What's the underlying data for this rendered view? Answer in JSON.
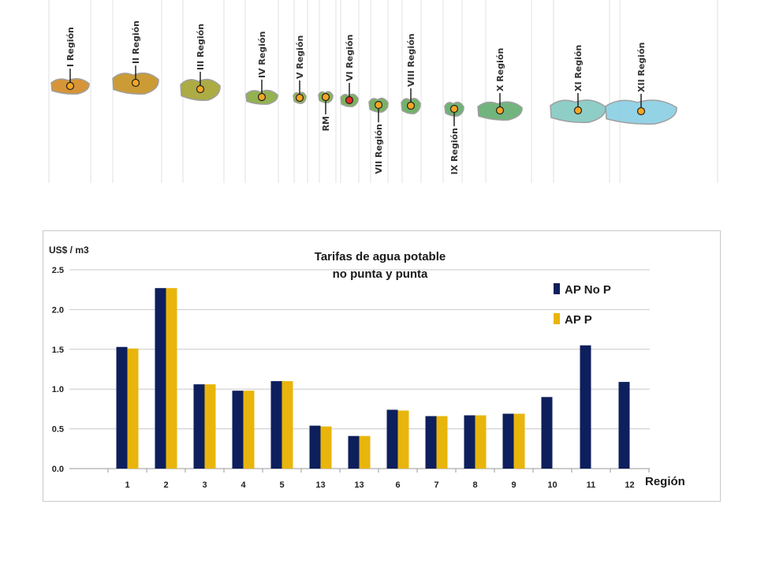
{
  "map": {
    "regions": [
      {
        "label": "I Región",
        "fill": "#d4902e",
        "dot": "#f5a623"
      },
      {
        "label": "II Región",
        "fill": "#c9962c",
        "dot": "#f5a623"
      },
      {
        "label": "III Región",
        "fill": "#a8a73a",
        "dot": "#f5a623"
      },
      {
        "label": "IV Región",
        "fill": "#8fae48",
        "dot": "#f5a623"
      },
      {
        "label": "V Región",
        "fill": "#88b04e",
        "dot": "#f5a623"
      },
      {
        "label": "RM",
        "fill": "#80b050",
        "dot": "#f5a623"
      },
      {
        "label": "VI Región",
        "fill": "#78ae56",
        "dot": "#e53020"
      },
      {
        "label": "VII Región",
        "fill": "#72ae5c",
        "dot": "#f5a623"
      },
      {
        "label": "VIII Región",
        "fill": "#6cae62",
        "dot": "#f5a623"
      },
      {
        "label": "IX Región",
        "fill": "#68ae6e",
        "dot": "#f5a623"
      },
      {
        "label": "X Región",
        "fill": "#6ab078",
        "dot": "#f5a623"
      },
      {
        "label": "XI Región",
        "fill": "#88ccc4",
        "dot": "#f5a623"
      },
      {
        "label": "XII Región",
        "fill": "#8fd0e4",
        "dot": "#f5a623"
      }
    ]
  },
  "chart_data": {
    "type": "bar",
    "title": [
      "Tarifas de agua potable",
      "no punta y punta"
    ],
    "ylabel": "US$ / m3",
    "xlabel": "Región",
    "ylim": [
      0,
      2.5
    ],
    "yticks": [
      "0.0",
      "0.5",
      "1.0",
      "1.5",
      "2.0",
      "2.5"
    ],
    "grid": true,
    "legend_position": "top-right",
    "categories": [
      "1",
      "2",
      "3",
      "4",
      "5",
      "13",
      "13",
      "6",
      "7",
      "8",
      "9",
      "10",
      "11",
      "12"
    ],
    "series": [
      {
        "name": "AP No P",
        "color": "#0d1f5c",
        "values": [
          1.53,
          2.27,
          1.06,
          0.98,
          1.1,
          0.54,
          0.41,
          0.74,
          0.66,
          0.67,
          0.69,
          0.9,
          1.55,
          1.09
        ]
      },
      {
        "name": "AP P",
        "color": "#e8b50c",
        "values": [
          1.51,
          2.27,
          1.06,
          0.98,
          1.1,
          0.53,
          0.41,
          0.73,
          0.66,
          0.67,
          0.69,
          null,
          null,
          null
        ]
      }
    ]
  }
}
